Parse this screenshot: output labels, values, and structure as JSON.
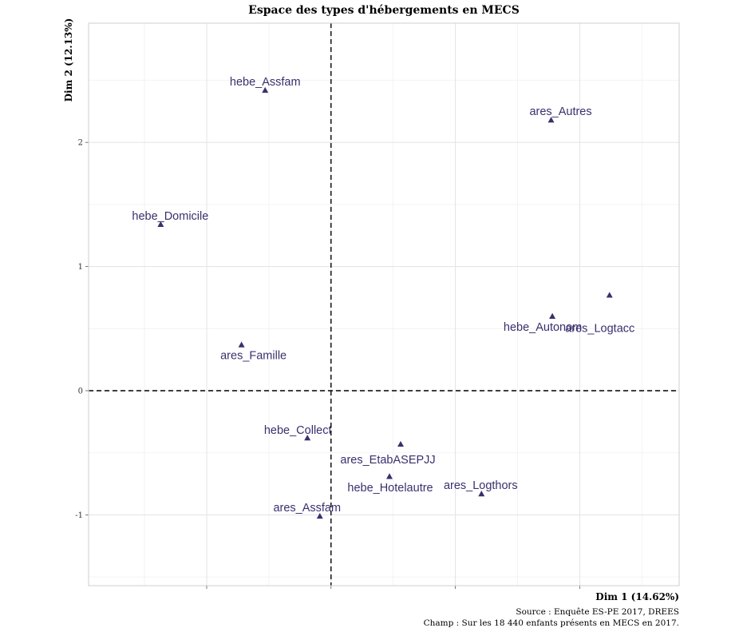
{
  "chart_data": {
    "type": "scatter",
    "title": "Espace des types d'hébergements en MECS",
    "xlabel": "Dim 1 (14.62%)",
    "ylabel": "Dim 2 (12.13%)",
    "xlim": [
      -1.95,
      2.8
    ],
    "ylim": [
      -1.57,
      2.96
    ],
    "yticks": [
      -1,
      0,
      1,
      2
    ],
    "color": "#3b2f6e",
    "points": [
      {
        "label": "hebe_Assfam",
        "x": -0.53,
        "y": 2.42
      },
      {
        "label": "ares_Autres",
        "x": 1.77,
        "y": 2.18
      },
      {
        "label": "hebe_Domicile",
        "x": -1.37,
        "y": 1.34
      },
      {
        "label": "ares_Logtacc",
        "x": 2.24,
        "y": 0.77
      },
      {
        "label": "hebe_Autonom",
        "x": 1.78,
        "y": 0.6
      },
      {
        "label": "ares_Famille",
        "x": -0.72,
        "y": 0.37
      },
      {
        "label": "hebe_Collect",
        "x": -0.19,
        "y": -0.38
      },
      {
        "label": "ares_EtabASEPJJ",
        "x": 0.56,
        "y": -0.43
      },
      {
        "label": "hebe_Hotelautre",
        "x": 0.47,
        "y": -0.69
      },
      {
        "label": "ares_Logthors",
        "x": 1.21,
        "y": -0.83
      },
      {
        "label": "ares_Assfam",
        "x": -0.09,
        "y": -1.01
      }
    ]
  },
  "caption": {
    "source": "Source : Enquête ES-PE 2017, DREES",
    "champ": "Champ : Sur les 18 440 enfants présents en MECS en 2017."
  }
}
